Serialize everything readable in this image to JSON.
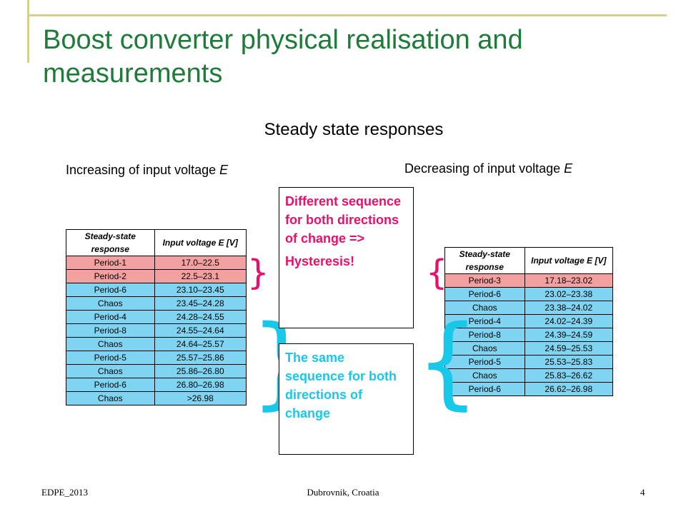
{
  "title": "Boost converter physical realisation and measurements",
  "subtitle": "Steady state responses",
  "left_label": {
    "text": "Increasing of input voltage ",
    "var": "E"
  },
  "right_label": {
    "text": "Decreasing of input voltage ",
    "var": "E"
  },
  "table_headers": {
    "col1": "Steady-state response",
    "col2": "Input voltage E [V]"
  },
  "left_table": [
    {
      "response": "Period-1",
      "voltage": "17.0–22.5",
      "group": "pink"
    },
    {
      "response": "Period-2",
      "voltage": "22.5–23.1",
      "group": "pink"
    },
    {
      "response": "Period-6",
      "voltage": "23.10–23.45",
      "group": "blue"
    },
    {
      "response": "Chaos",
      "voltage": "23.45–24.28",
      "group": "blue"
    },
    {
      "response": "Period-4",
      "voltage": "24.28–24.55",
      "group": "blue"
    },
    {
      "response": "Period-8",
      "voltage": "24.55–24.64",
      "group": "blue"
    },
    {
      "response": "Chaos",
      "voltage": "24.64–25.57",
      "group": "blue"
    },
    {
      "response": "Period-5",
      "voltage": "25.57–25.86",
      "group": "blue"
    },
    {
      "response": "Chaos",
      "voltage": "25.86–26.80",
      "group": "blue"
    },
    {
      "response": "Period-6",
      "voltage": "26.80–26.98",
      "group": "blue"
    },
    {
      "response": "Chaos",
      "voltage": ">26.98",
      "group": "blue"
    }
  ],
  "right_table": [
    {
      "response": "Period-3",
      "voltage": "17.18–23.02",
      "group": "pink"
    },
    {
      "response": "Period-6",
      "voltage": "23.02–23.38",
      "group": "blue"
    },
    {
      "response": "Chaos",
      "voltage": "23.38–24.02",
      "group": "blue"
    },
    {
      "response": "Period-4",
      "voltage": "24.02–24.39",
      "group": "blue"
    },
    {
      "response": "Period-8",
      "voltage": "24.39–24.59",
      "group": "blue"
    },
    {
      "response": "Chaos",
      "voltage": "24.59–25.53",
      "group": "blue"
    },
    {
      "response": "Period-5",
      "voltage": "25.53–25.83",
      "group": "blue"
    },
    {
      "response": "Chaos",
      "voltage": "25.83–26.62",
      "group": "blue"
    },
    {
      "response": "Period-6",
      "voltage": "26.62–26.98",
      "group": "blue"
    }
  ],
  "callout_pink": {
    "line1": "Different sequence for both directions of change =>",
    "line2": "Hysteresis!"
  },
  "callout_cyan": "The same sequence for both directions of change",
  "footer": {
    "left": "EDPE_2013",
    "center": "Dubrovnik, Croatia",
    "page": "4"
  },
  "colors": {
    "title": "#1e7b3a",
    "accent_pink": "#e8106a",
    "accent_cyan": "#18c8e8",
    "row_pink": "#f2a0a0",
    "row_blue": "#7fd4f2",
    "decoration": "#d6d08e"
  }
}
